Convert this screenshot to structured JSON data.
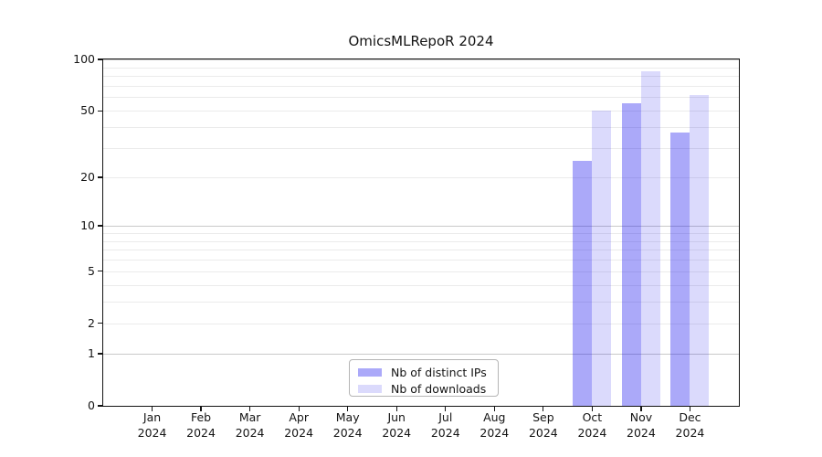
{
  "title": "OmicsMLRepoR 2024",
  "chart_data": {
    "type": "bar",
    "title": "OmicsMLRepoR 2024",
    "xlabel": "",
    "ylabel": "",
    "year": "2024",
    "categories": [
      "Jan",
      "Feb",
      "Mar",
      "Apr",
      "May",
      "Jun",
      "Jul",
      "Aug",
      "Sep",
      "Oct",
      "Nov",
      "Dec"
    ],
    "series": [
      {
        "name": "Nb of distinct IPs",
        "fill": "rgba(13, 8, 237, 0.35)",
        "solid_hex": "#a9a6f7",
        "values": [
          null,
          null,
          null,
          null,
          null,
          null,
          null,
          null,
          null,
          25,
          55,
          37
        ]
      },
      {
        "name": "Nb of downloads",
        "fill": "rgba(13, 8, 237, 0.15)",
        "solid_hex": "#dbdafc",
        "values": [
          null,
          null,
          null,
          null,
          null,
          null,
          null,
          null,
          null,
          50,
          85,
          62
        ]
      }
    ],
    "yscale": "log1p",
    "ylim": [
      0,
      100
    ],
    "yticks": [
      0,
      1,
      2,
      5,
      10,
      20,
      50,
      100
    ],
    "grid": {
      "on": true,
      "major_values": [
        1,
        10,
        100
      ],
      "minor_values": [
        2,
        3,
        4,
        5,
        6,
        7,
        8,
        9,
        20,
        30,
        40,
        50,
        60,
        70,
        80,
        90
      ],
      "major_color": "#c9c9c9",
      "minor_color": "#ebebeb"
    },
    "legend_position": "lower center"
  }
}
